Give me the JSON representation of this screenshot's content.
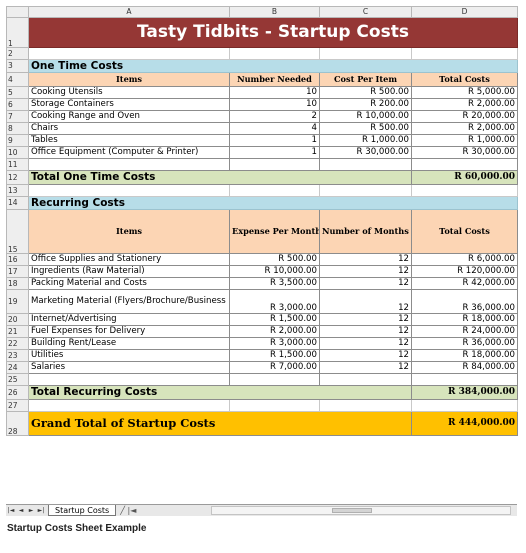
{
  "columns": [
    "A",
    "B",
    "C",
    "D"
  ],
  "rows": [
    "1",
    "2",
    "3",
    "4",
    "5",
    "6",
    "7",
    "8",
    "9",
    "10",
    "11",
    "12",
    "13",
    "14",
    "15",
    "16",
    "17",
    "18",
    "19",
    "20",
    "21",
    "22",
    "23",
    "24",
    "25",
    "26",
    "27",
    "28"
  ],
  "title": "Tasty Tidbits - Startup Costs",
  "one_time": {
    "section_label": "One Time Costs",
    "headers": [
      "Items",
      "Number Needed",
      "Cost Per Item",
      "Total Costs"
    ],
    "items": [
      {
        "item": "Cooking Utensils",
        "qty": "10",
        "cost": "R 500.00",
        "total": "R 5,000.00"
      },
      {
        "item": "Storage Containers",
        "qty": "10",
        "cost": "R 200.00",
        "total": "R 2,000.00"
      },
      {
        "item": "Cooking Range and Oven",
        "qty": "2",
        "cost": "R 10,000.00",
        "total": "R 20,000.00"
      },
      {
        "item": "Chairs",
        "qty": "4",
        "cost": "R 500.00",
        "total": "R 2,000.00"
      },
      {
        "item": "Tables",
        "qty": "1",
        "cost": "R 1,000.00",
        "total": "R 1,000.00"
      },
      {
        "item": "Office Equipment (Computer & Printer)",
        "qty": "1",
        "cost": "R 30,000.00",
        "total": "R 30,000.00"
      }
    ],
    "total_label": "Total One Time Costs",
    "total_value": "R 60,000.00"
  },
  "recurring": {
    "section_label": "Recurring Costs",
    "headers": [
      "Items",
      "Expense Per Month",
      "Number of Months (Calculated for one year)",
      "Total Costs"
    ],
    "items": [
      {
        "item": "Office Supplies and Stationery",
        "expense": "R 500.00",
        "months": "12",
        "total": "R 6,000.00"
      },
      {
        "item": "Ingredients (Raw Material)",
        "expense": "R 10,000.00",
        "months": "12",
        "total": "R 120,000.00"
      },
      {
        "item": "Packing Material and Costs",
        "expense": "R 3,500.00",
        "months": "12",
        "total": "R 42,000.00"
      },
      {
        "item": "Marketing Material (Flyers/Brochure/Business Cards)",
        "expense": "R 3,000.00",
        "months": "12",
        "total": "R 36,000.00"
      },
      {
        "item": "Internet/Advertising",
        "expense": "R 1,500.00",
        "months": "12",
        "total": "R 18,000.00"
      },
      {
        "item": "Fuel Expenses for Delivery",
        "expense": "R 2,000.00",
        "months": "12",
        "total": "R 24,000.00"
      },
      {
        "item": "Building Rent/Lease",
        "expense": "R 3,000.00",
        "months": "12",
        "total": "R 36,000.00"
      },
      {
        "item": "Utilities",
        "expense": "R 1,500.00",
        "months": "12",
        "total": "R 18,000.00"
      },
      {
        "item": "Salaries",
        "expense": "R 7,000.00",
        "months": "12",
        "total": "R 84,000.00"
      }
    ],
    "total_label": "Total Recurring Costs",
    "total_value": "R 384,000.00"
  },
  "grand_total": {
    "label": "Grand Total of Startup Costs",
    "value": "R 444,000.00"
  },
  "tabbar": {
    "nav": [
      "|◄",
      "◄",
      "►",
      "►|"
    ],
    "sheet_tab": "Startup Costs",
    "sep": "╱ |◄"
  },
  "caption": "Startup Costs Sheet Example",
  "colors": {
    "title_bg": "#953735",
    "section_bg": "#b7dde8",
    "header_bg": "#fcd5b4",
    "total_bg": "#d7e4bc",
    "grand_bg": "#ffc000"
  }
}
